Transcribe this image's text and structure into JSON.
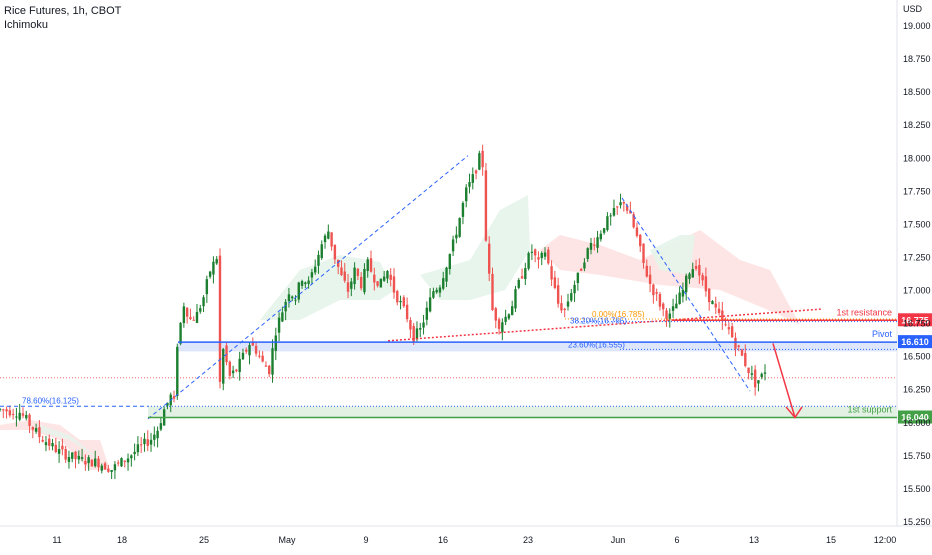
{
  "header": {
    "title": "Rice Futures, 1h, CBOT",
    "indicator": "Ichimoku",
    "currency": "USD"
  },
  "colors": {
    "up": "#26a69a",
    "upDark": "#1b7f2f",
    "down": "#ef5350",
    "resistance": "#f23645",
    "pivot": "#2962ff",
    "support": "#43a047",
    "fib": "#2962ff",
    "cloudGreen": "#e6f4ea",
    "cloudRed": "#fde2e2"
  },
  "chart_data": {
    "type": "candlestick",
    "title": "Rice Futures, 1h, CBOT",
    "ylim": [
      15.25,
      19.1
    ],
    "y_ticks": [
      "19.000",
      "18.750",
      "18.500",
      "18.250",
      "18.000",
      "17.750",
      "17.500",
      "17.250",
      "17.000",
      "16.750",
      "16.500",
      "16.250",
      "16.000",
      "15.750",
      "15.500",
      "15.250"
    ],
    "x_ticks": [
      "11",
      "18",
      "25",
      "May",
      "9",
      "16",
      "23",
      "Jun",
      "6",
      "13",
      "15",
      "12:00"
    ],
    "levels": [
      {
        "name": "1st resistance",
        "value": 16.775,
        "label": "16.775",
        "color": "#f23645"
      },
      {
        "name": "Pivot",
        "value": 16.61,
        "label": "16.610",
        "color": "#2962ff"
      },
      {
        "name": "1st support",
        "value": 16.04,
        "label": "16.040",
        "color": "#43a047"
      }
    ],
    "fib_labels": [
      {
        "text": "78.60%(16.125)",
        "value": 16.125
      },
      {
        "text": "23.60%(16.555)",
        "value": 16.555
      },
      {
        "text": "38.20%(16.765)",
        "value": 16.765
      },
      {
        "text": "0.00%(16.785)",
        "value": 16.785
      }
    ],
    "close_path": [
      [
        0,
        16.1
      ],
      [
        6,
        16.08
      ],
      [
        12,
        15.9
      ],
      [
        18,
        15.78
      ],
      [
        24,
        15.72
      ],
      [
        30,
        15.7
      ],
      [
        34,
        15.65
      ],
      [
        38,
        15.72
      ],
      [
        42,
        15.8
      ],
      [
        46,
        15.88
      ],
      [
        48,
        15.95
      ],
      [
        50,
        16.1
      ],
      [
        52,
        16.2
      ],
      [
        53,
        16.15
      ],
      [
        54,
        16.6
      ],
      [
        56,
        16.9
      ],
      [
        58,
        16.78
      ],
      [
        60,
        16.82
      ],
      [
        62,
        16.95
      ],
      [
        64,
        17.15
      ],
      [
        66,
        17.25
      ],
      [
        67,
        16.3
      ],
      [
        68,
        16.55
      ],
      [
        70,
        16.35
      ],
      [
        72,
        16.4
      ],
      [
        74,
        16.5
      ],
      [
        76,
        16.6
      ],
      [
        78,
        16.55
      ],
      [
        80,
        16.45
      ],
      [
        82,
        16.4
      ],
      [
        84,
        16.7
      ],
      [
        86,
        16.85
      ],
      [
        88,
        17.0
      ],
      [
        90,
        16.95
      ],
      [
        92,
        17.1
      ],
      [
        94,
        17.05
      ],
      [
        96,
        17.2
      ],
      [
        98,
        17.35
      ],
      [
        100,
        17.45
      ],
      [
        102,
        17.25
      ],
      [
        104,
        17.1
      ],
      [
        106,
        17.0
      ],
      [
        108,
        17.15
      ],
      [
        110,
        17.05
      ],
      [
        112,
        17.2
      ],
      [
        114,
        17.1
      ],
      [
        116,
        17.05
      ],
      [
        118,
        17.15
      ],
      [
        120,
        17.0
      ],
      [
        122,
        16.9
      ],
      [
        124,
        16.8
      ],
      [
        126,
        16.65
      ],
      [
        128,
        16.7
      ],
      [
        130,
        16.85
      ],
      [
        132,
        17.0
      ],
      [
        134,
        17.05
      ],
      [
        136,
        17.2
      ],
      [
        138,
        17.35
      ],
      [
        140,
        17.55
      ],
      [
        142,
        17.75
      ],
      [
        144,
        17.85
      ],
      [
        146,
        18.0
      ],
      [
        147,
        17.95
      ],
      [
        148,
        17.4
      ],
      [
        149,
        17.1
      ],
      [
        150,
        16.85
      ],
      [
        152,
        16.75
      ],
      [
        154,
        16.8
      ],
      [
        156,
        16.9
      ],
      [
        158,
        17.05
      ],
      [
        160,
        17.2
      ],
      [
        162,
        17.3
      ],
      [
        164,
        17.2
      ],
      [
        166,
        17.3
      ],
      [
        168,
        17.1
      ],
      [
        170,
        16.9
      ],
      [
        172,
        16.85
      ],
      [
        174,
        17.0
      ],
      [
        176,
        17.1
      ],
      [
        178,
        17.25
      ],
      [
        180,
        17.35
      ],
      [
        182,
        17.4
      ],
      [
        184,
        17.5
      ],
      [
        186,
        17.55
      ],
      [
        188,
        17.62
      ],
      [
        190,
        17.68
      ],
      [
        192,
        17.55
      ],
      [
        194,
        17.4
      ],
      [
        196,
        17.2
      ],
      [
        198,
        17.05
      ],
      [
        200,
        16.95
      ],
      [
        202,
        16.85
      ],
      [
        204,
        16.8
      ],
      [
        206,
        16.9
      ],
      [
        208,
        17.0
      ],
      [
        210,
        17.15
      ],
      [
        212,
        17.2
      ],
      [
        214,
        17.05
      ],
      [
        216,
        16.95
      ],
      [
        218,
        16.85
      ],
      [
        220,
        16.75
      ],
      [
        222,
        16.7
      ],
      [
        224,
        16.6
      ],
      [
        226,
        16.5
      ],
      [
        228,
        16.4
      ],
      [
        230,
        16.3
      ],
      [
        232,
        16.35
      ],
      [
        233,
        16.4
      ]
    ]
  }
}
